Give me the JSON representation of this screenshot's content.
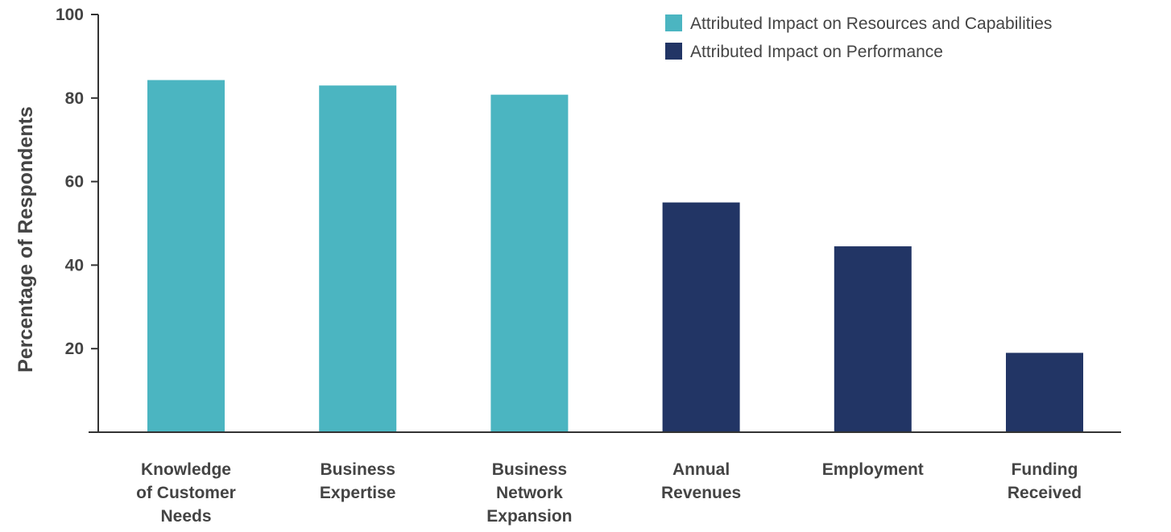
{
  "chart_data": {
    "type": "bar",
    "title": "",
    "xlabel": "",
    "ylabel": "Percentage of Respondents",
    "ylim": [
      0,
      100
    ],
    "yticks": [
      20,
      40,
      60,
      80,
      100
    ],
    "grid": false,
    "legend_position": "top-right",
    "categories": [
      [
        "Knowledge",
        "of Customer",
        "Needs"
      ],
      [
        "Business",
        "Expertise"
      ],
      [
        "Business",
        "Network",
        "Expansion"
      ],
      [
        "Annual",
        "Revenues"
      ],
      [
        "Employment"
      ],
      [
        "Funding",
        "Received"
      ]
    ],
    "series": [
      {
        "name": "Attributed Impact on Resources and Capabilities",
        "color": "#4bb5c1",
        "values": [
          84.3,
          83,
          80.8,
          null,
          null,
          null
        ]
      },
      {
        "name": "Attributed Impact on Performance",
        "color": "#223565",
        "values": [
          null,
          null,
          null,
          55,
          44.5,
          19
        ]
      }
    ]
  }
}
